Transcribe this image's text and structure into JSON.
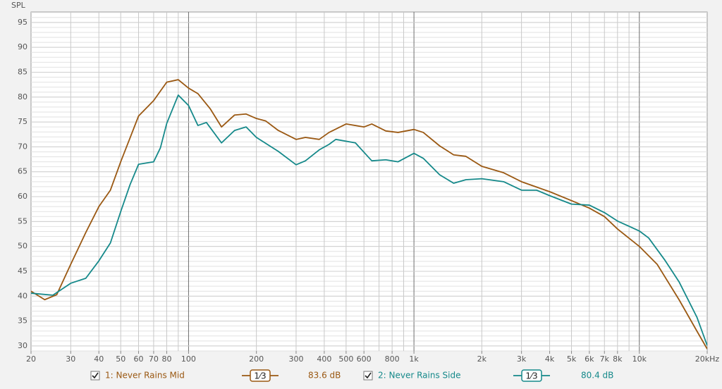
{
  "chart_data": {
    "type": "line",
    "y_label": "SPL",
    "xscale": "log",
    "grid": true,
    "xlim": [
      20,
      20000
    ],
    "ylim": [
      29,
      97.1
    ],
    "yticks": [
      30,
      35,
      40,
      45,
      50,
      55,
      60,
      65,
      70,
      75,
      80,
      85,
      90,
      95
    ],
    "xticks": [
      20,
      30,
      40,
      50,
      60,
      70,
      80,
      100,
      200,
      300,
      400,
      500,
      600,
      800,
      {
        "value": 1000,
        "label": "1k"
      },
      {
        "value": 2000,
        "label": "2k"
      },
      {
        "value": 3000,
        "label": "3k"
      },
      {
        "value": 4000,
        "label": "4k"
      },
      {
        "value": 5000,
        "label": "5k"
      },
      {
        "value": 6000,
        "label": "6k"
      },
      {
        "value": 7000,
        "label": "7k"
      },
      {
        "value": 8000,
        "label": "8k"
      },
      {
        "value": 10000,
        "label": "10k"
      },
      {
        "value": 20000,
        "label": "20kHz"
      }
    ],
    "series": [
      {
        "name": "1: Never Rains Mid",
        "color": "#9a5812",
        "smoothing": "1⁄3",
        "level": "83.6 dB",
        "x": [
          20,
          23,
          26,
          30,
          35,
          40,
          45,
          50,
          55,
          60,
          70,
          80,
          90,
          100,
          110,
          125,
          140,
          160,
          180,
          200,
          220,
          250,
          300,
          330,
          380,
          420,
          500,
          600,
          650,
          750,
          850,
          1000,
          1100,
          1300,
          1500,
          1700,
          2000,
          2500,
          3000,
          4000,
          5000,
          6000,
          7000,
          8000,
          10000,
          12000,
          15000,
          18000,
          20000
        ],
        "values": [
          41.0,
          39.3,
          40.3,
          46.4,
          52.8,
          58.0,
          61.3,
          67.0,
          71.8,
          76.2,
          79.3,
          83.0,
          83.5,
          81.8,
          80.7,
          77.6,
          74.0,
          76.4,
          76.6,
          75.7,
          75.2,
          73.3,
          71.5,
          71.9,
          71.5,
          72.9,
          74.6,
          74.0,
          74.6,
          73.2,
          72.9,
          73.5,
          72.9,
          70.2,
          68.4,
          68.1,
          66.1,
          64.8,
          63.0,
          61.0,
          59.2,
          57.7,
          56.0,
          53.5,
          50.0,
          46.4,
          39.3,
          33.0,
          29.4
        ]
      },
      {
        "name": "2: Never Rains Side",
        "color": "#15898a",
        "smoothing": "1⁄3",
        "level": "80.4 dB",
        "x": [
          20,
          25,
          30,
          35,
          40,
          45,
          50,
          55,
          60,
          70,
          75,
          80,
          90,
          100,
          110,
          120,
          140,
          160,
          180,
          200,
          250,
          300,
          330,
          380,
          420,
          450,
          550,
          650,
          750,
          850,
          1000,
          1100,
          1300,
          1500,
          1700,
          2000,
          2500,
          3000,
          3500,
          4000,
          5000,
          6000,
          7000,
          8000,
          10000,
          11000,
          13000,
          15000,
          18000,
          20000
        ],
        "values": [
          40.6,
          40.2,
          42.6,
          43.6,
          47.1,
          50.7,
          57.0,
          62.4,
          66.5,
          67.0,
          69.8,
          74.7,
          80.4,
          78.3,
          74.3,
          74.9,
          70.8,
          73.3,
          74.0,
          71.9,
          69.1,
          66.4,
          67.2,
          69.4,
          70.5,
          71.5,
          70.8,
          67.2,
          67.4,
          67.0,
          68.7,
          67.7,
          64.4,
          62.7,
          63.4,
          63.6,
          63.0,
          61.3,
          61.3,
          60.2,
          58.5,
          58.3,
          56.8,
          55.1,
          53.1,
          51.7,
          47.2,
          42.9,
          35.8,
          30.1
        ]
      }
    ]
  }
}
